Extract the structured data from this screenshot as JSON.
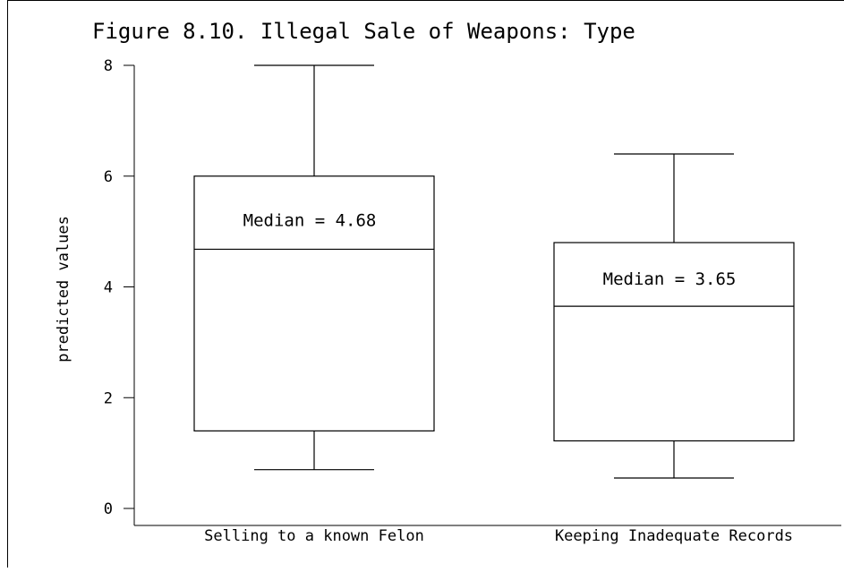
{
  "chart_data": {
    "type": "box",
    "title": "Figure 8.10. Illegal Sale of Weapons: Type",
    "xlabel": "",
    "ylabel": "predicted values",
    "ylim": [
      0,
      8
    ],
    "yticks": [
      0,
      2,
      4,
      6,
      8
    ],
    "grid": false,
    "categories": [
      "Selling to a known Felon",
      "Keeping Inadequate Records"
    ],
    "boxes": [
      {
        "category": "Selling to a known Felon",
        "whisker_low": 0.7,
        "q1": 1.4,
        "median": 4.68,
        "q3": 6.0,
        "whisker_high": 8.0,
        "annotation": "Median = 4.68"
      },
      {
        "category": "Keeping Inadequate Records",
        "whisker_low": 0.55,
        "q1": 1.22,
        "median": 3.65,
        "q3": 4.8,
        "whisker_high": 6.4,
        "annotation": "Median = 3.65"
      }
    ],
    "colors": {
      "stroke": "#000000",
      "background": "#ffffff"
    }
  }
}
